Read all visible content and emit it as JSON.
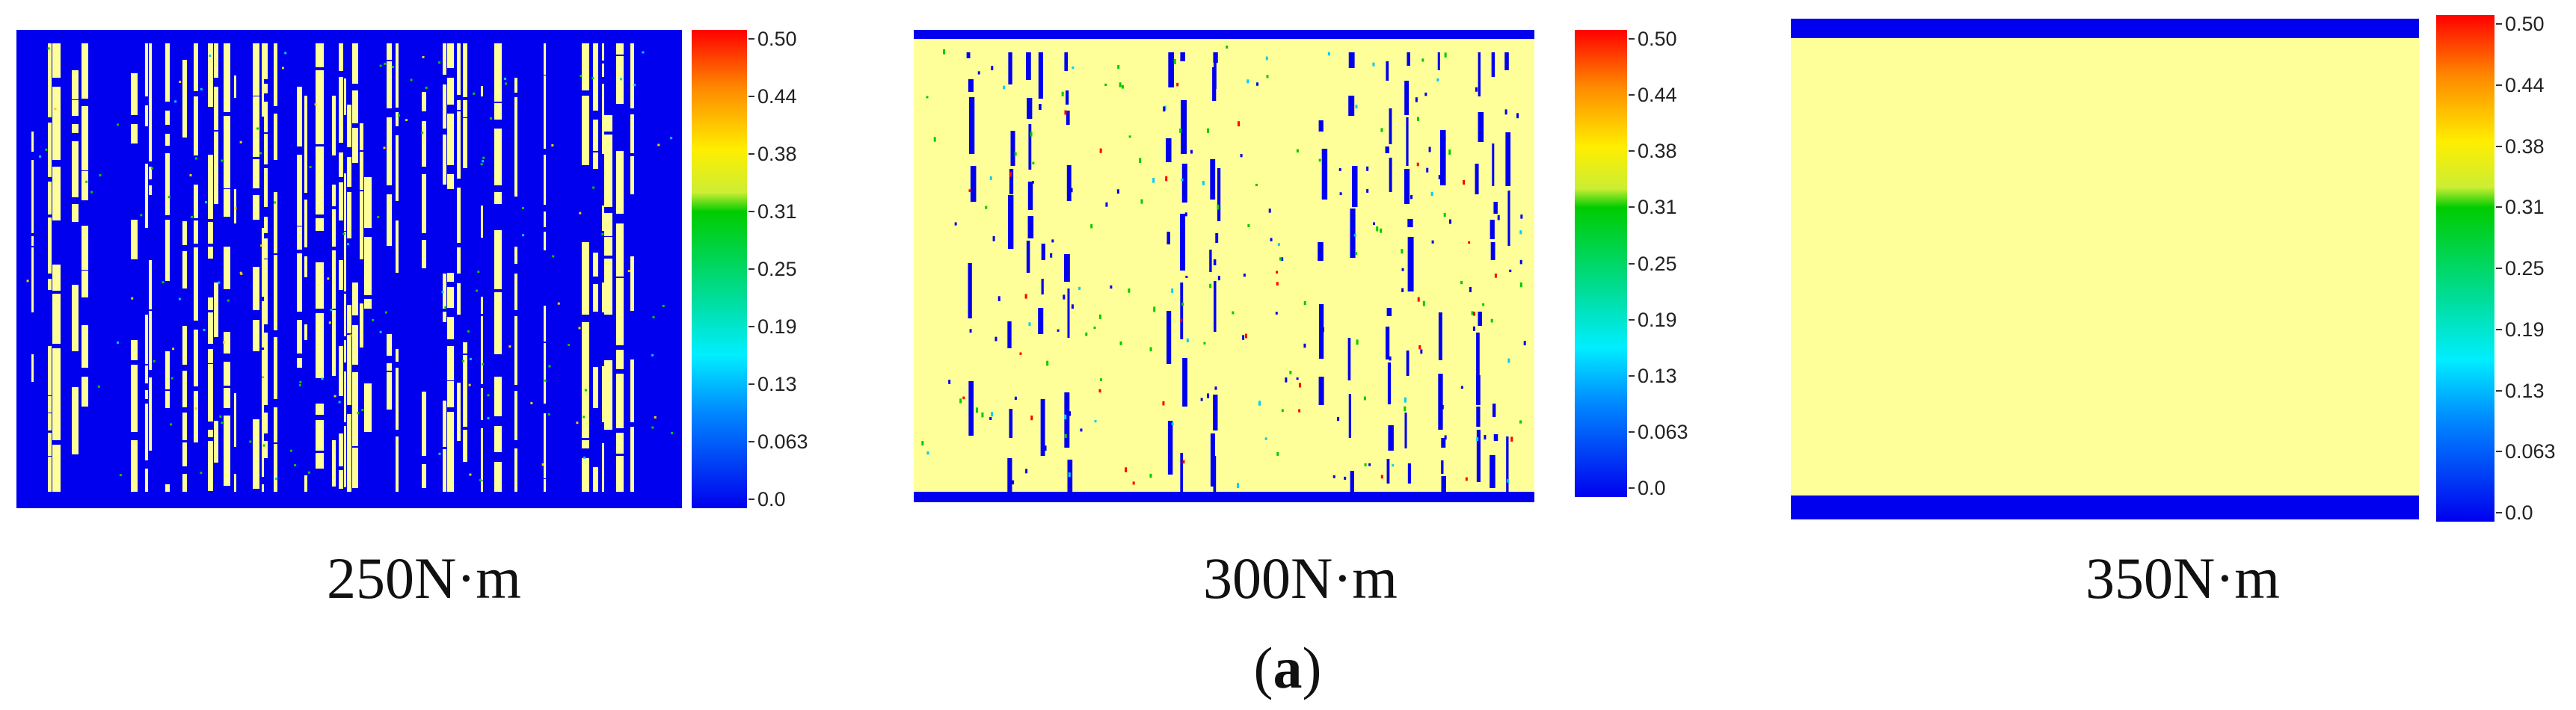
{
  "colorbar": {
    "ticks": [
      "0.50",
      "0.44",
      "0.38",
      "0.31",
      "0.25",
      "0.19",
      "0.13",
      "0.063",
      "0.0"
    ],
    "colors": {
      "blue": "#0000ee",
      "pale_yellow": "#ffff99",
      "green": "#00cc00",
      "red": "#ff0000"
    }
  },
  "panels": [
    {
      "caption": "250N·m"
    },
    {
      "caption": "300N·m"
    },
    {
      "caption": "350N·m"
    }
  ],
  "figure": {
    "label_open": "(",
    "label_letter": "a",
    "label_close": ")"
  }
}
